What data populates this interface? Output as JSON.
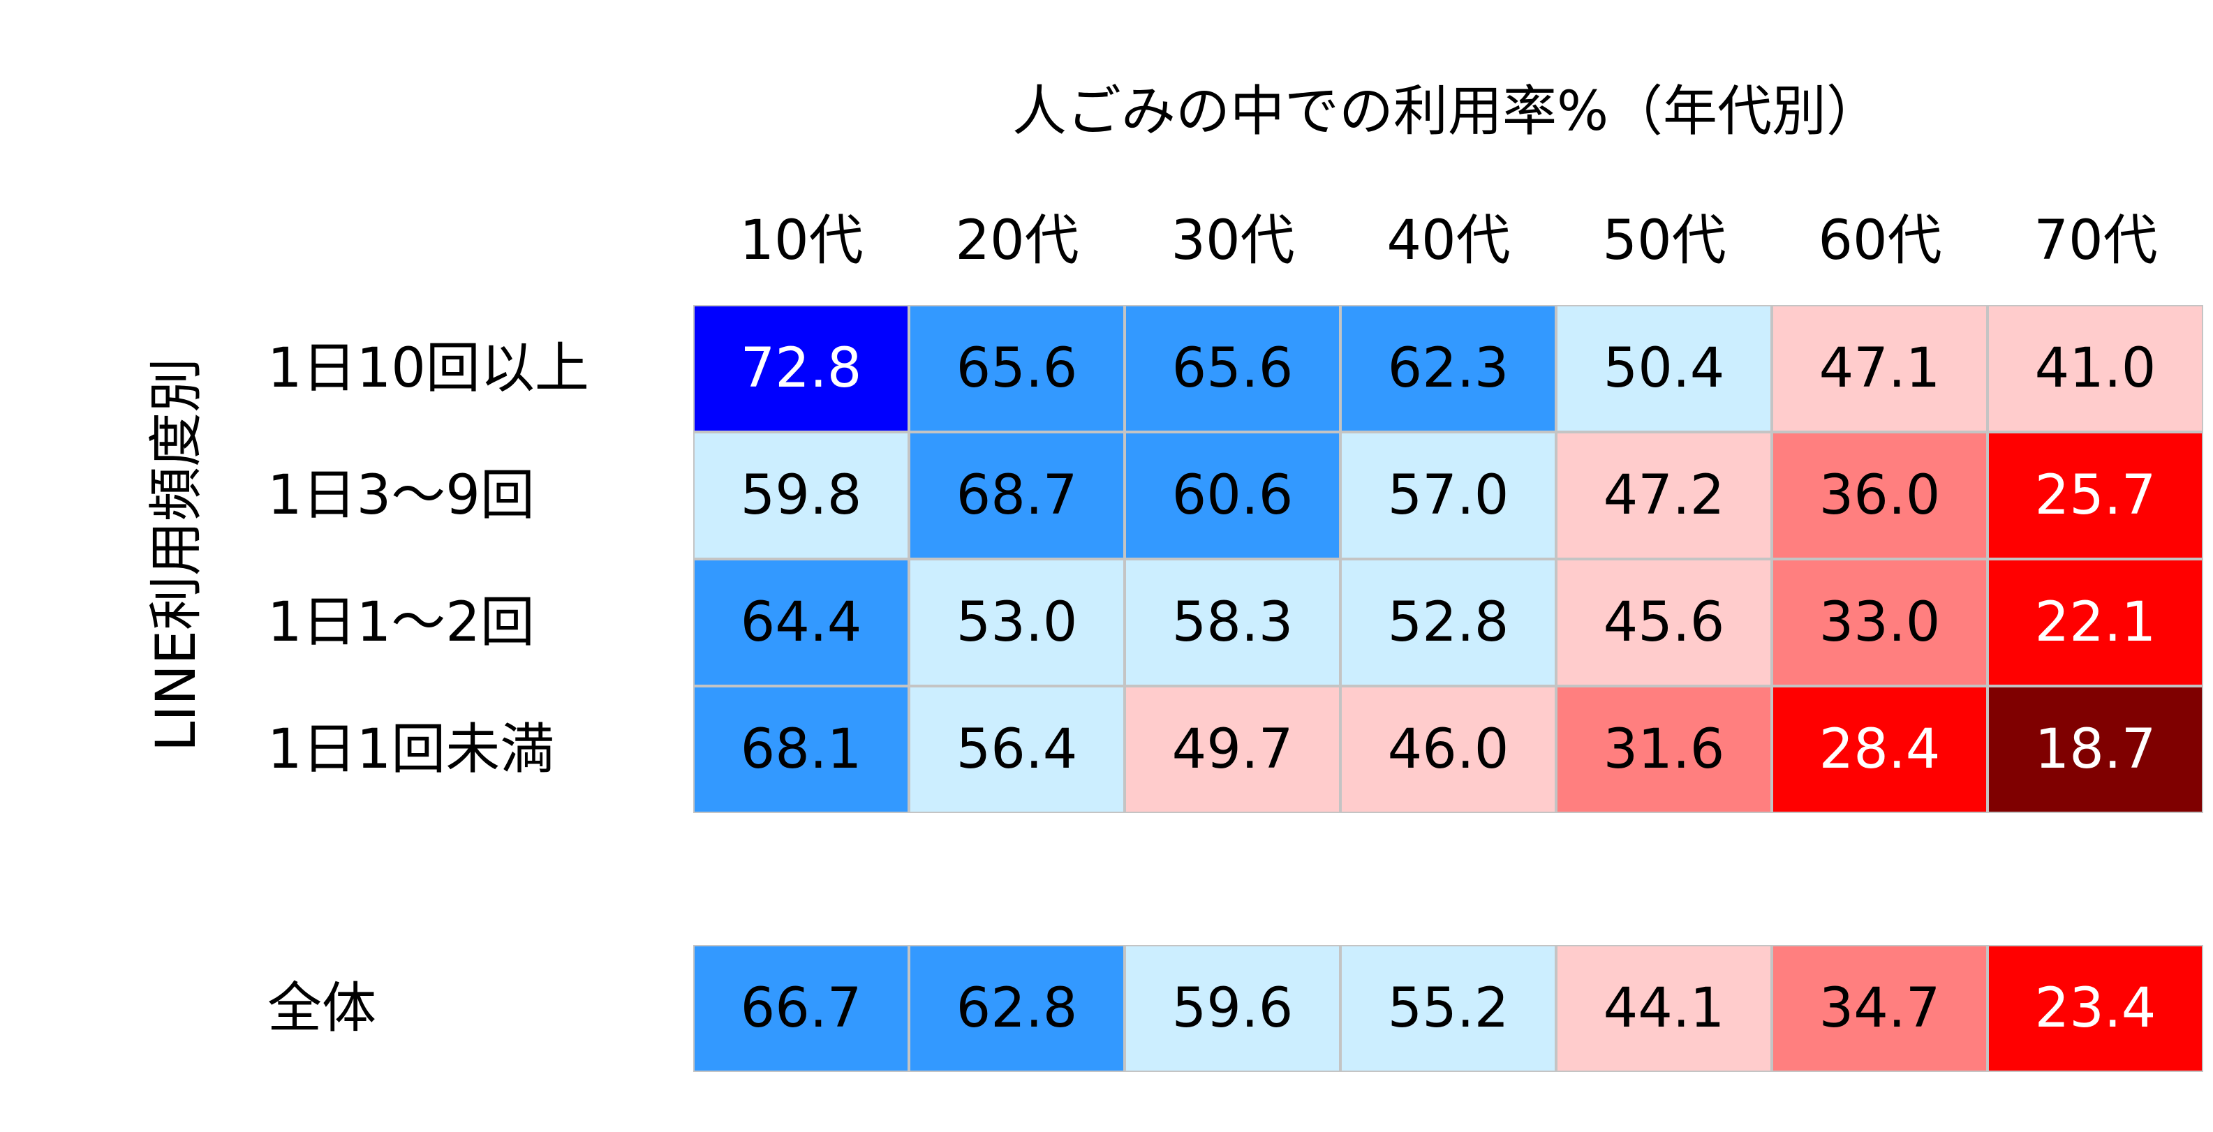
{
  "chart_data": {
    "type": "heatmap",
    "title": "人ごみの中での利用率%（年代別）",
    "xlabel": "",
    "ylabel": "LINE利用頻度別",
    "columns": [
      "10代",
      "20代",
      "30代",
      "40代",
      "50代",
      "60代",
      "70代"
    ],
    "rows": [
      {
        "label": "1日10回以上",
        "values": [
          72.8,
          65.6,
          65.6,
          62.3,
          50.4,
          47.1,
          41.0
        ]
      },
      {
        "label": "1日3～9回",
        "values": [
          59.8,
          68.7,
          60.6,
          57.0,
          47.2,
          36.0,
          25.7
        ]
      },
      {
        "label": "1日1～2回",
        "values": [
          64.4,
          53.0,
          58.3,
          52.8,
          45.6,
          33.0,
          22.1
        ]
      },
      {
        "label": "1日1回未満",
        "values": [
          68.1,
          56.4,
          49.7,
          46.0,
          31.6,
          28.4,
          18.7
        ]
      }
    ],
    "total_row": {
      "label": "全体",
      "values": [
        66.7,
        62.8,
        59.6,
        55.2,
        44.1,
        34.7,
        23.4
      ]
    },
    "color_scale": [
      {
        "min": 70,
        "color": "#0000ff",
        "text": "#ffffff"
      },
      {
        "min": 60,
        "color": "#3399ff",
        "text": "#000000"
      },
      {
        "min": 50,
        "color": "#cceeff",
        "text": "#000000"
      },
      {
        "min": 40,
        "color": "#ffcccc",
        "text": "#000000"
      },
      {
        "min": 30,
        "color": "#ff7f7f",
        "text": "#000000"
      },
      {
        "min": 20,
        "color": "#ff0000",
        "text": "#ffffff"
      },
      {
        "min": 0,
        "color": "#7f0000",
        "text": "#ffffff"
      }
    ],
    "grid": true
  }
}
